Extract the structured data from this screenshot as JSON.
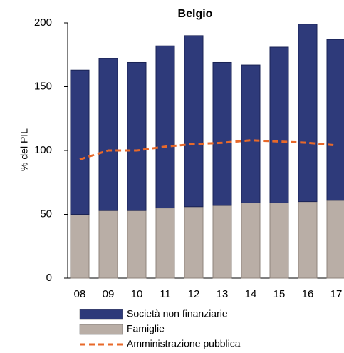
{
  "chart_data": {
    "type": "bar",
    "stacked": true,
    "title": "Belgio",
    "y_label": "% del PIL",
    "categories": [
      "08",
      "09",
      "10",
      "11",
      "12",
      "13",
      "14",
      "15",
      "16",
      "17"
    ],
    "series": [
      {
        "name": "Società non finanziarie",
        "color": "#2e3a7a",
        "values": [
          113,
          119,
          116,
          127,
          134,
          112,
          108,
          122,
          139,
          126
        ]
      },
      {
        "name": "Famiglie",
        "color": "#b9aea6",
        "values": [
          50,
          53,
          53,
          55,
          56,
          57,
          59,
          59,
          60,
          61
        ]
      },
      {
        "name": "Amministrazione pubblica",
        "color": "#e8692a",
        "type": "line",
        "values": [
          93,
          100,
          100,
          103,
          105,
          106,
          108,
          107,
          106,
          104
        ]
      }
    ],
    "ylim": [
      0,
      200
    ],
    "yticks": [
      0,
      50,
      100,
      150,
      200
    ],
    "grid": false
  }
}
